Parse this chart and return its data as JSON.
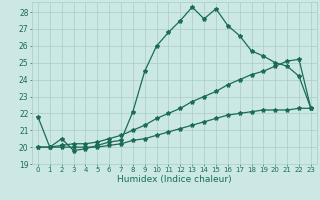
{
  "xlabel": "Humidex (Indice chaleur)",
  "bg_color": "#cce8e4",
  "line_color": "#1a6b5a",
  "grid_color": "#aaccca",
  "xlim": [
    -0.5,
    23.5
  ],
  "ylim": [
    19,
    28.6
  ],
  "yticks": [
    19,
    20,
    21,
    22,
    23,
    24,
    25,
    26,
    27,
    28
  ],
  "xticks": [
    0,
    1,
    2,
    3,
    4,
    5,
    6,
    7,
    8,
    9,
    10,
    11,
    12,
    13,
    14,
    15,
    16,
    17,
    18,
    19,
    20,
    21,
    22,
    23
  ],
  "series1_x": [
    0,
    1,
    2,
    3,
    4,
    5,
    6,
    7,
    8,
    9,
    10,
    11,
    12,
    13,
    14,
    15,
    16,
    17,
    18,
    19,
    20,
    21,
    22,
    23
  ],
  "series1_y": [
    21.8,
    20.0,
    20.5,
    19.8,
    19.9,
    20.1,
    20.3,
    20.4,
    22.1,
    24.5,
    26.0,
    26.8,
    27.5,
    28.3,
    27.6,
    28.2,
    27.2,
    26.6,
    25.7,
    25.4,
    25.0,
    24.8,
    24.2,
    22.3
  ],
  "series2_x": [
    0,
    1,
    2,
    3,
    4,
    5,
    6,
    7,
    8,
    9,
    10,
    11,
    12,
    13,
    14,
    15,
    16,
    17,
    18,
    19,
    20,
    21,
    22,
    23
  ],
  "series2_y": [
    20.0,
    20.0,
    20.1,
    20.2,
    20.2,
    20.3,
    20.5,
    20.7,
    21.0,
    21.3,
    21.7,
    22.0,
    22.3,
    22.7,
    23.0,
    23.3,
    23.7,
    24.0,
    24.3,
    24.5,
    24.8,
    25.1,
    25.2,
    22.3
  ],
  "series3_x": [
    0,
    1,
    2,
    3,
    4,
    5,
    6,
    7,
    8,
    9,
    10,
    11,
    12,
    13,
    14,
    15,
    16,
    17,
    18,
    19,
    20,
    21,
    22,
    23
  ],
  "series3_y": [
    20.0,
    20.0,
    20.0,
    20.0,
    20.0,
    20.0,
    20.1,
    20.2,
    20.4,
    20.5,
    20.7,
    20.9,
    21.1,
    21.3,
    21.5,
    21.7,
    21.9,
    22.0,
    22.1,
    22.2,
    22.2,
    22.2,
    22.3,
    22.3
  ],
  "markersize": 3,
  "linewidth": 0.9
}
